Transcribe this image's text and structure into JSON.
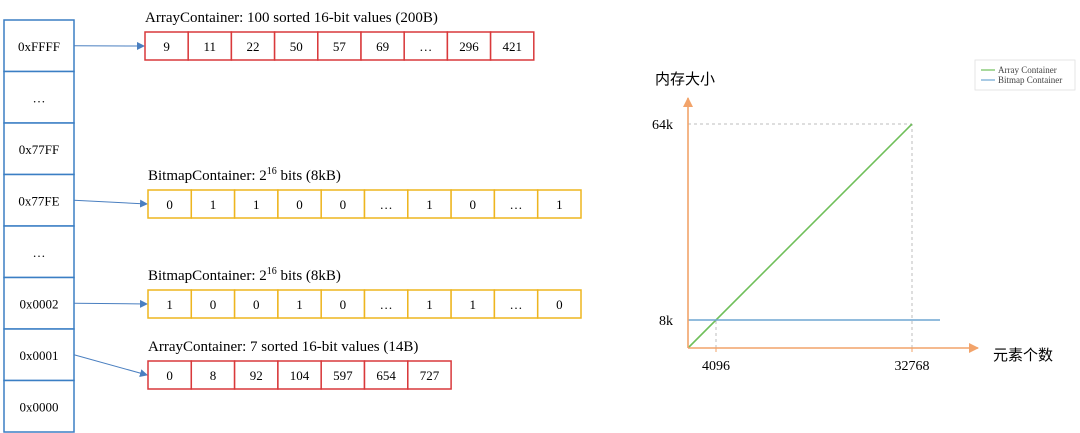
{
  "colors": {
    "index_border": "#3b7fc4",
    "array_border": "#d9393b",
    "bitmap_border": "#eeb51f",
    "arrow": "#4a7fc0",
    "axis": "#f2a36a",
    "array_line": "#6fbf5a",
    "bitmap_line": "#6ea6d2",
    "guide": "#bdbdbd"
  },
  "index_keys": [
    "0xFFFF",
    "…",
    "0x77FF",
    "0x77FE",
    "…",
    "0x0002",
    "0x0001",
    "0x0000"
  ],
  "containers": [
    {
      "caption_main": "ArrayContainer: 100 sorted 16-bit values (200B)",
      "kind": "array",
      "from_key": 0,
      "cells": [
        "9",
        "11",
        "22",
        "50",
        "57",
        "69",
        "…",
        "296",
        "421"
      ]
    },
    {
      "caption_pre": "BitmapContainer: 2",
      "caption_sup": "16",
      "caption_post": " bits (8kB)",
      "kind": "bitmap",
      "from_key": 3,
      "cells": [
        "0",
        "1",
        "1",
        "0",
        "0",
        "…",
        "1",
        "0",
        "…",
        "1"
      ]
    },
    {
      "caption_pre": "BitmapContainer: 2",
      "caption_sup": "16",
      "caption_post": " bits (8kB)",
      "kind": "bitmap",
      "from_key": 5,
      "cells": [
        "1",
        "0",
        "0",
        "1",
        "0",
        "…",
        "1",
        "1",
        "…",
        "0"
      ]
    },
    {
      "caption_main": "ArrayContainer: 7 sorted 16-bit values (14B)",
      "kind": "array",
      "from_key": 6,
      "cells": [
        "0",
        "8",
        "92",
        "104",
        "597",
        "654",
        "727"
      ]
    }
  ],
  "chart_data": {
    "type": "line",
    "ylabel": "内存大小",
    "xlabel": "元素个数",
    "x_ticks": [
      4096,
      32768
    ],
    "x_tick_labels": [
      "4096",
      "32768"
    ],
    "y_ticks": [
      8,
      64
    ],
    "y_tick_labels": [
      "8k",
      "64k"
    ],
    "xlim": [
      0,
      36864
    ],
    "ylim": [
      0,
      72
    ],
    "grid": false,
    "legend_position": "top-right",
    "series": [
      {
        "name": "Array Container",
        "x": [
          0,
          32768
        ],
        "y": [
          0,
          64
        ],
        "color": "#6fbf5a"
      },
      {
        "name": "Bitmap Container",
        "x": [
          0,
          36864
        ],
        "y": [
          8,
          8
        ],
        "color": "#6ea6d2"
      }
    ]
  }
}
